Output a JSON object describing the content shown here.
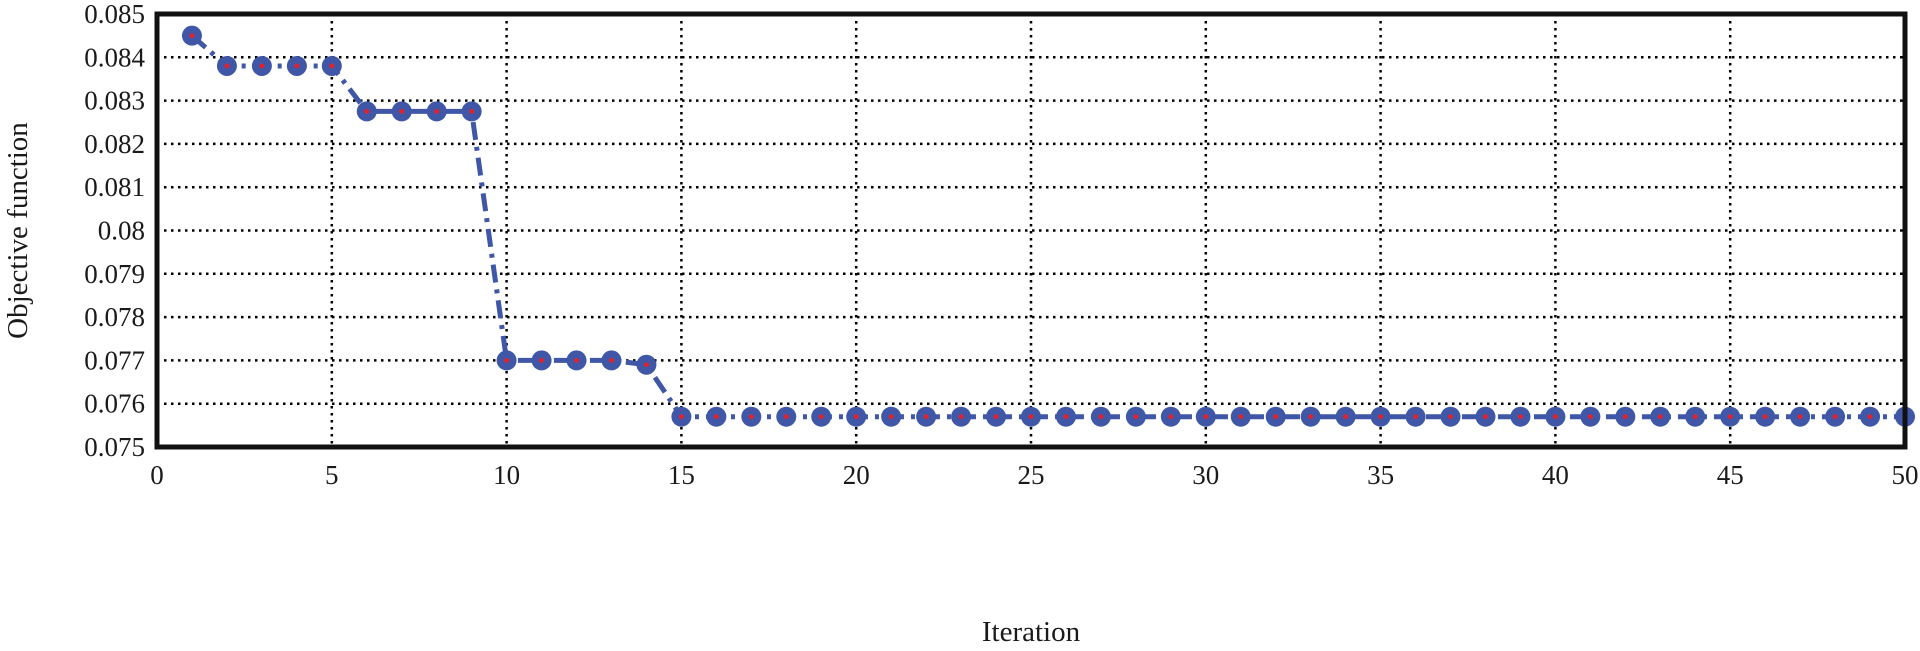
{
  "chart_data": {
    "type": "line",
    "title": "",
    "xlabel": "Iteration",
    "ylabel": "Objective function",
    "xlim": [
      0,
      50
    ],
    "ylim": [
      0.075,
      0.085
    ],
    "xticks": [
      0,
      5,
      10,
      15,
      20,
      25,
      30,
      35,
      40,
      45,
      50
    ],
    "yticks": [
      0.075,
      0.076,
      0.077,
      0.078,
      0.079,
      0.08,
      0.081,
      0.082,
      0.083,
      0.084,
      0.085
    ],
    "xtick_labels": [
      "0",
      "5",
      "10",
      "15",
      "20",
      "25",
      "30",
      "35",
      "40",
      "45",
      "50"
    ],
    "ytick_labels": [
      "0.075",
      "0.076",
      "0.077",
      "0.078",
      "0.079",
      "0.08",
      "0.081",
      "0.082",
      "0.083",
      "0.084",
      "0.085"
    ],
    "grid": true,
    "legend": "none",
    "line_style": "dash-dot",
    "colors": {
      "line": "#3f57a6",
      "marker_fill": "#3f57a6",
      "marker_center": "#e8202a",
      "grid": "#000000",
      "frame": "#111111"
    },
    "series": [
      {
        "x": [
          1,
          2,
          3,
          4,
          5,
          6,
          7,
          8,
          9,
          10,
          11,
          12,
          13,
          14,
          15,
          16,
          17,
          18,
          19,
          20,
          21,
          22,
          23,
          24,
          25,
          26,
          27,
          28,
          29,
          30,
          31,
          32,
          33,
          34,
          35,
          36,
          37,
          38,
          39,
          40,
          41,
          42,
          43,
          44,
          45,
          46,
          47,
          48,
          49,
          50
        ],
        "values": [
          0.0845,
          0.0838,
          0.0838,
          0.0838,
          0.0838,
          0.08275,
          0.08275,
          0.08275,
          0.08275,
          0.077,
          0.077,
          0.077,
          0.077,
          0.0769,
          0.0757,
          0.0757,
          0.0757,
          0.0757,
          0.0757,
          0.0757,
          0.0757,
          0.0757,
          0.0757,
          0.0757,
          0.0757,
          0.0757,
          0.0757,
          0.0757,
          0.0757,
          0.0757,
          0.0757,
          0.0757,
          0.0757,
          0.0757,
          0.0757,
          0.0757,
          0.0757,
          0.0757,
          0.0757,
          0.0757,
          0.0757,
          0.0757,
          0.0757,
          0.0757,
          0.0757,
          0.0757,
          0.0757,
          0.0757,
          0.0757,
          0.0757
        ]
      }
    ]
  }
}
